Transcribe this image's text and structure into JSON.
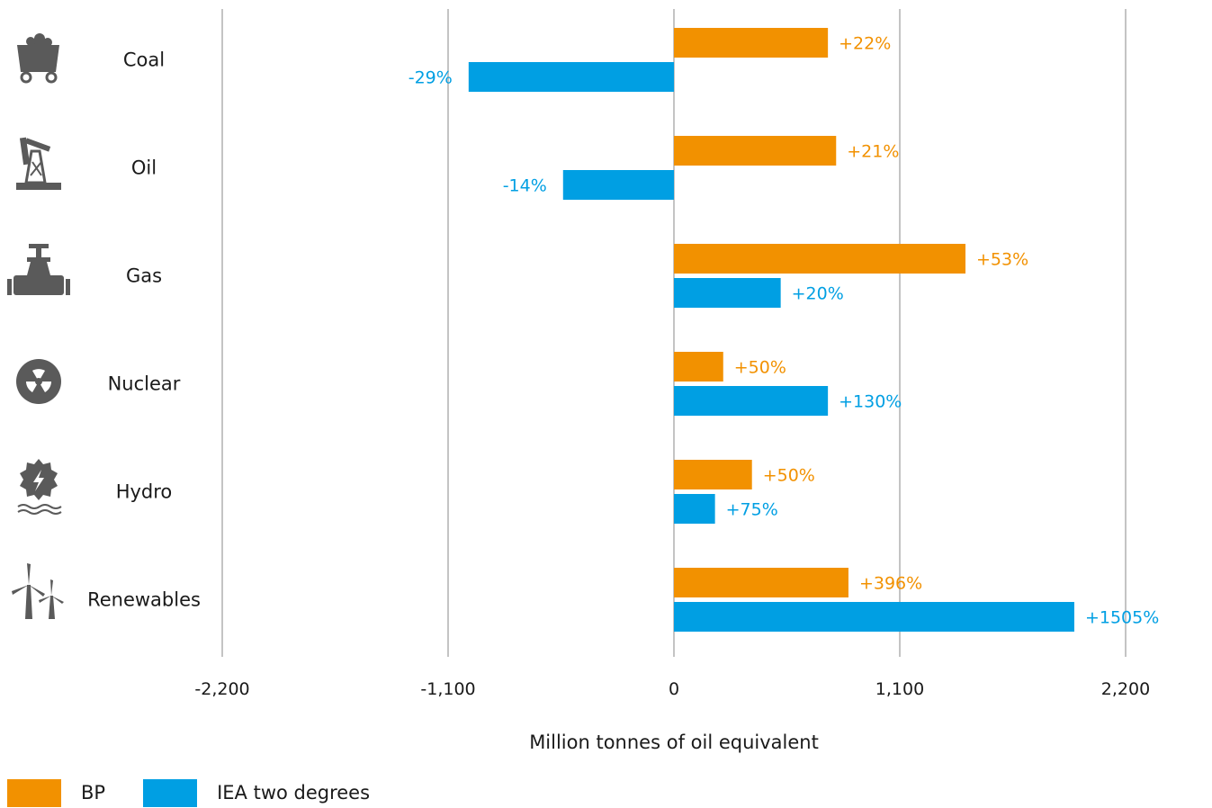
{
  "chart_data": {
    "type": "bar",
    "orientation": "horizontal",
    "categories": [
      "Coal",
      "Oil",
      "Gas",
      "Nuclear",
      "Hydro",
      "Renewables"
    ],
    "series": [
      {
        "name": "BP",
        "color": "#F29100",
        "values": [
          750,
          790,
          1420,
          240,
          380,
          850
        ],
        "labels": [
          "+22%",
          "+21%",
          "+53%",
          "+50%",
          "+50%",
          "+396%"
        ]
      },
      {
        "name": "IEA two degrees",
        "color": "#009FE3",
        "values": [
          -1000,
          -540,
          520,
          750,
          200,
          1950
        ],
        "labels": [
          "-29%",
          "-14%",
          "+20%",
          "+130%",
          "+75%",
          "+1505%"
        ]
      }
    ],
    "xlabel": "Million tonnes of oil equivalent",
    "xlim": [
      -2200,
      2200
    ],
    "xticks": [
      -2200,
      -1100,
      0,
      1100,
      2200
    ],
    "xtick_labels": [
      "-2,200",
      "-1,100",
      "0",
      "1,100",
      "2,200"
    ],
    "grid": "vertical",
    "legend_position": "bottom-left",
    "category_icons": [
      "coal-cart-icon",
      "oil-pump-icon",
      "gas-valve-icon",
      "nuclear-icon",
      "hydro-turbine-icon",
      "wind-turbine-icon"
    ]
  }
}
